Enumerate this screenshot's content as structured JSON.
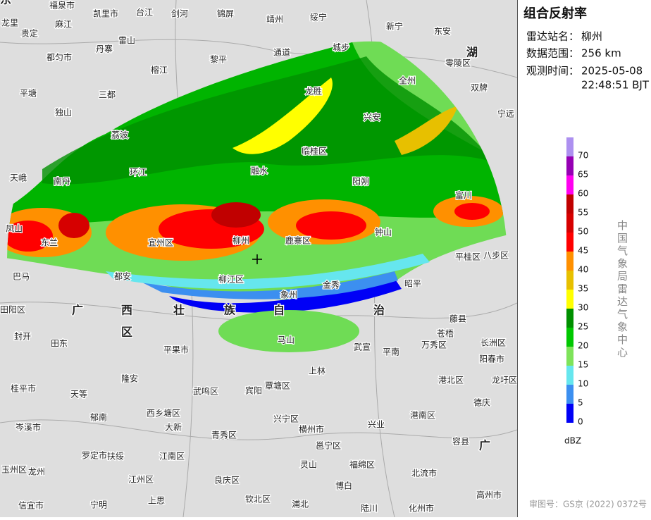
{
  "panel": {
    "title": "组合反射率",
    "station_label": "雷达站名：",
    "station": "柳州",
    "range_label": "数据范围：",
    "range": "256 km",
    "time_label": "观测时间：",
    "date": "2025-05-08",
    "time": "22:48:51 BJT",
    "unit": "dBZ",
    "credit": "中国气象局雷达气象中心",
    "approval": "审图号：GS京 (2022) 0372号"
  },
  "legend": {
    "levels": [
      0,
      5,
      10,
      15,
      20,
      25,
      30,
      35,
      40,
      45,
      50,
      55,
      60,
      65,
      70
    ],
    "colors": [
      "#0000f6",
      "#3c8ff0",
      "#66e6ee",
      "#7ee35a",
      "#00c800",
      "#009000",
      "#ffff00",
      "#e7c000",
      "#ff9000",
      "#ff0000",
      "#d60000",
      "#c00000",
      "#ff00f0",
      "#9600b4",
      "#ad90f0"
    ]
  },
  "map": {
    "labels": [
      "福泉市",
      "凯里市",
      "台江",
      "剑河",
      "锦屏",
      "靖州",
      "绥宁",
      "龙里",
      "麻江",
      "贵定",
      "丹寨",
      "雷山",
      "新宁",
      "东安",
      "都匀市",
      "榕江",
      "黎平",
      "通道",
      "城步",
      "全州",
      "零陵区",
      "湖",
      "平塘",
      "三都",
      "双牌",
      "独山",
      "龙胜",
      "兴安",
      "宁远",
      "荔波",
      "天峨",
      "融水",
      "临桂区",
      "阳朔",
      "富川",
      "南丹",
      "环江",
      "凤山",
      "东兰",
      "宜州区",
      "柳州",
      "鹿寨区",
      "钟山",
      "平桂区",
      "八步区",
      "巴马",
      "都安",
      "柳江区",
      "象州",
      "金秀",
      "昭平",
      "田阳区",
      "广",
      "西",
      "壮",
      "族",
      "自",
      "治",
      "区",
      "马山",
      "武宣",
      "平南",
      "藤县",
      "苍梧",
      "万秀区",
      "长洲区",
      "封开",
      "田东",
      "平果市",
      "上林",
      "桂平市",
      "天等",
      "隆安",
      "武鸣区",
      "宾阳",
      "覃塘区",
      "港北区",
      "龙圩区",
      "德庆",
      "郁南",
      "西乡塘区",
      "兴宁区",
      "港南区",
      "岑溪市",
      "大新",
      "青秀区",
      "横州市",
      "兴业",
      "容县",
      "罗定市",
      "扶绥",
      "江南区",
      "邕宁区",
      "玉州区",
      "龙州",
      "江州区",
      "良庆区",
      "灵山",
      "福绵区",
      "北流市",
      "信宜市",
      "宁明",
      "上思",
      "钦北区",
      "浦北",
      "博白",
      "陆川",
      "化州市",
      "高州市",
      "阳春市",
      "广",
      "东"
    ]
  }
}
